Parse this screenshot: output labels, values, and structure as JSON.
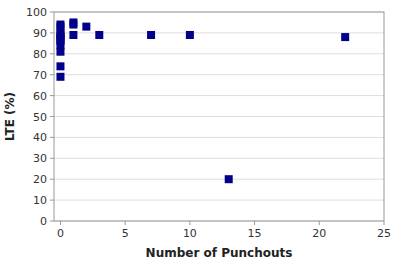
{
  "chart_data": {
    "type": "scatter",
    "x": [
      0,
      0,
      0,
      0,
      0,
      0,
      0,
      0,
      0,
      0,
      0,
      1,
      1,
      1,
      2,
      3,
      7,
      10,
      13,
      22
    ],
    "y": [
      94,
      93,
      90,
      89,
      88,
      87,
      86,
      84,
      81,
      74,
      69,
      95,
      94,
      89,
      93,
      89,
      89,
      89,
      20,
      88
    ],
    "color": "#00008B",
    "marker": "square",
    "xlabel": "Number of Punchouts",
    "ylabel": "LTE (%)",
    "xlim": [
      -0.5,
      25
    ],
    "ylim": [
      0,
      100
    ],
    "xticks": [
      0,
      5,
      10,
      15,
      20,
      25
    ],
    "yticks": [
      0,
      10,
      20,
      30,
      40,
      50,
      60,
      70,
      80,
      90,
      100
    ],
    "grid": "y"
  }
}
